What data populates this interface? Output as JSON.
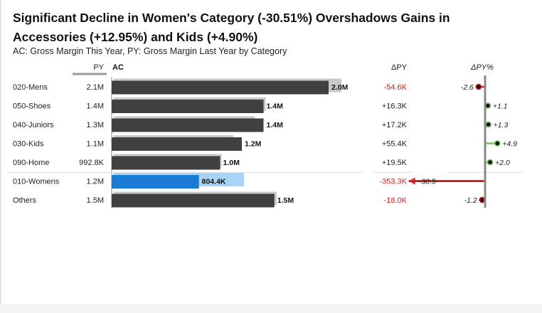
{
  "header": {
    "title": "Significant Decline in Women's Category (-30.51%) Overshadows Gains in Accessories (+12.95%) and Kids (+4.90%)",
    "subtitle": "AC: Gross Margin This Year, PY: Gross Margin Last Year by Category"
  },
  "chart_data": {
    "type": "bar",
    "columns": {
      "py": "PY",
      "ac": "AC",
      "delta_abs": "ΔPY",
      "delta_pct": "ΔPY%"
    },
    "categories": [
      "020-Mens",
      "050-Shoes",
      "040-Juniors",
      "030-Kids",
      "090-Home",
      "010-Womens",
      "Others"
    ],
    "series": [
      {
        "name": "PY",
        "values": [
          2.1,
          1.4,
          1.3,
          1.1,
          0.9928,
          1.2,
          1.5
        ],
        "labels": [
          "2.1M",
          "1.4M",
          "1.3M",
          "1.1M",
          "992.8K",
          "1.2M",
          "1.5M"
        ]
      },
      {
        "name": "AC",
        "values": [
          2.0,
          1.4,
          1.4,
          1.2,
          1.0,
          0.8044,
          1.5
        ],
        "labels": [
          "2.0M",
          "1.4M",
          "1.4M",
          "1.2M",
          "1.0M",
          "804.4K",
          "1.5M"
        ]
      }
    ],
    "delta_abs": {
      "values": [
        -54.6,
        16.3,
        17.2,
        55.4,
        19.5,
        -353.3,
        -18.0
      ],
      "labels": [
        "-54.6K",
        "+16.3K",
        "+17.2K",
        "+55.4K",
        "+19.5K",
        "-353.3K",
        "-18.0K"
      ]
    },
    "delta_pct": {
      "values": [
        -2.6,
        1.1,
        1.3,
        4.9,
        2.0,
        -30.5,
        -1.2
      ],
      "labels": [
        "-2.6",
        "+1.1",
        "+1.3",
        "+4.9",
        "+2.0",
        "-30.5",
        "-1.2"
      ]
    },
    "units": "M",
    "highlight_category": "010-Womens",
    "colors": {
      "ac_bar": "#404040",
      "py_bar": "#c8c8c8",
      "highlight_ac": "#1a7ad4",
      "highlight_py": "#a8d4f8",
      "negative": "#d91e1e",
      "positive_text": "#222222",
      "positive_marker": "#7cc26a",
      "axis": "#888888"
    }
  }
}
